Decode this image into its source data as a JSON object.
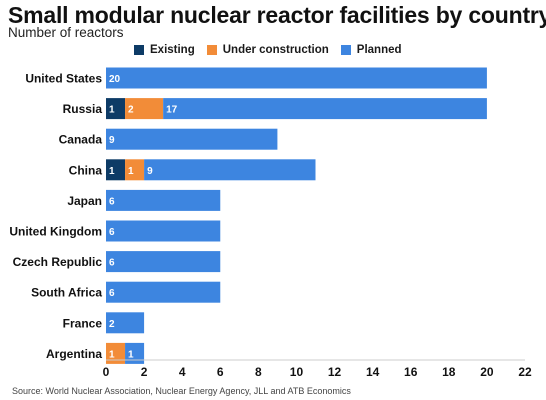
{
  "chart_data": {
    "type": "bar",
    "orientation": "horizontal",
    "stacked": true,
    "title": "Small modular nuclear reactor facilities by country",
    "subtitle": "Number of reactors",
    "categories": [
      "United States",
      "Russia",
      "Canada",
      "China",
      "Japan",
      "United Kingdom",
      "Czech Republic",
      "South Africa",
      "France",
      "Argentina"
    ],
    "series": [
      {
        "name": "Existing",
        "color": "#0d3b66",
        "values": [
          0,
          1,
          0,
          1,
          0,
          0,
          0,
          0,
          0,
          0
        ]
      },
      {
        "name": "Under construction",
        "color": "#f28c38",
        "values": [
          0,
          2,
          0,
          1,
          0,
          0,
          0,
          0,
          0,
          1
        ]
      },
      {
        "name": "Planned",
        "color": "#3d85e0",
        "values": [
          20,
          17,
          9,
          9,
          6,
          6,
          6,
          6,
          2,
          1
        ]
      }
    ],
    "xlim": [
      0,
      22
    ],
    "xticks": [
      0,
      2,
      4,
      6,
      8,
      10,
      12,
      14,
      16,
      18,
      20,
      22
    ],
    "grid": false,
    "legend_position": "top",
    "source": "Source: World Nuclear Association, Nuclear Energy Agency, JLL and ATB Economics"
  }
}
